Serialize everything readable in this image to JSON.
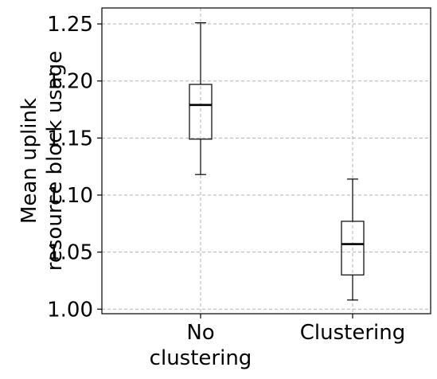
{
  "chart_data": {
    "type": "boxplot",
    "title": "",
    "xlabel": "",
    "ylabel": [
      "Mean uplink",
      "resource block usage"
    ],
    "categories": [
      {
        "id": "no-clustering",
        "label": [
          "No",
          "clustering"
        ]
      },
      {
        "id": "clustering",
        "label": [
          "Clustering"
        ]
      }
    ],
    "boxes": [
      {
        "category": "no-clustering",
        "whisker_low": 1.118,
        "q1": 1.149,
        "median": 1.179,
        "q3": 1.197,
        "whisker_high": 1.251
      },
      {
        "category": "clustering",
        "whisker_low": 1.008,
        "q1": 1.03,
        "median": 1.057,
        "q3": 1.077,
        "whisker_high": 1.114
      }
    ],
    "ylim": [
      0.996,
      1.264
    ],
    "yticks": [
      1.0,
      1.05,
      1.1,
      1.15,
      1.2,
      1.25
    ],
    "ytick_labels": [
      "1.00",
      "1.05",
      "1.10",
      "1.15",
      "1.20",
      "1.25"
    ],
    "grid": true,
    "legend": "none",
    "colors": {
      "box": "#000000",
      "median": "#000000",
      "grid": "#b0b0b0",
      "background": "#ffffff"
    }
  }
}
